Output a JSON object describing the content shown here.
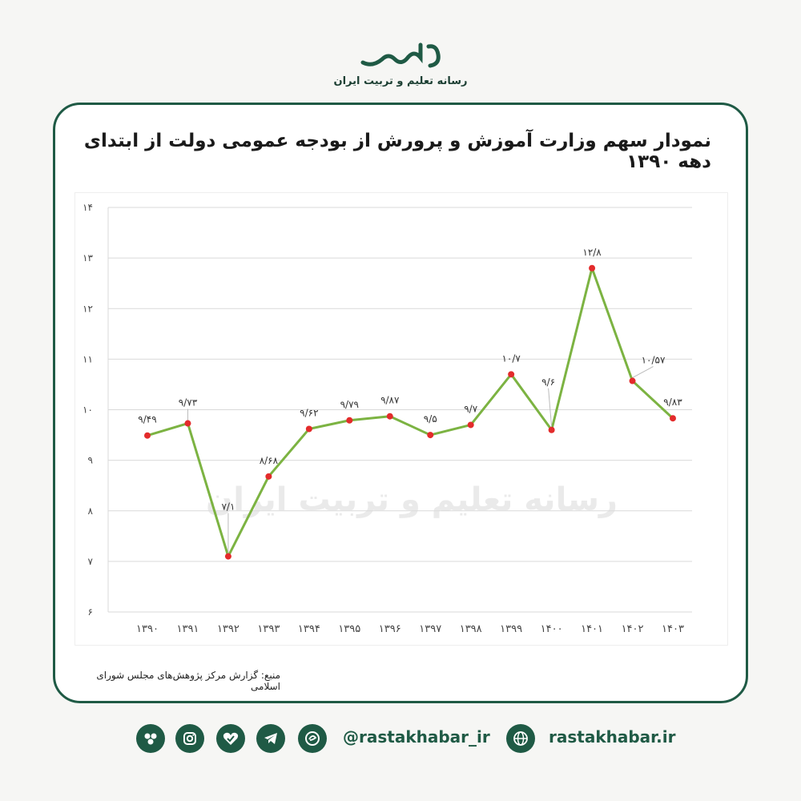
{
  "brand": {
    "logo_text": "رستا",
    "subtitle": "رسانه تعلیم و تربیت ایران"
  },
  "title": "نمودار سهم وزارت آموزش و پرورش از بودجه عمومی دولت از ابتدای دهه ۱۳۹۰",
  "source": "منبع: گزارش مرکز پژوهش‌های مجلس شورای اسلامی",
  "watermark": "رسانه تعلیم و تربیت ایران",
  "footer": {
    "handle": "@rastakhabar_ir",
    "website": "rastakhabar.ir",
    "icons": [
      "rubika-icon",
      "instagram-icon",
      "check-heart-icon",
      "telegram-icon",
      "eitaa-icon",
      "globe-icon"
    ]
  },
  "colors": {
    "line": "#7cb342",
    "marker": "#e32b2b",
    "accent": "#1f5a45"
  },
  "chart_data": {
    "type": "line",
    "categories": [
      "۱۳۹۰",
      "۱۳۹۱",
      "۱۳۹۲",
      "۱۳۹۳",
      "۱۳۹۴",
      "۱۳۹۵",
      "۱۳۹۶",
      "۱۳۹۷",
      "۱۳۹۸",
      "۱۳۹۹",
      "۱۴۰۰",
      "۱۴۰۱",
      "۱۴۰۲",
      "۱۴۰۳"
    ],
    "values": [
      9.49,
      9.73,
      7.1,
      8.68,
      9.62,
      9.79,
      9.87,
      9.5,
      9.7,
      10.7,
      9.6,
      12.8,
      10.57,
      9.83
    ],
    "data_labels": [
      "۹/۴۹",
      "۹/۷۳",
      "۷/۱",
      "۸/۶۸",
      "۹/۶۲",
      "۹/۷۹",
      "۹/۸۷",
      "۹/۵",
      "۹/۷",
      "۱۰/۷",
      "۹/۶",
      "۱۲/۸",
      "۱۰/۵۷",
      "۹/۸۳"
    ],
    "yticks": [
      6,
      7,
      8,
      9,
      10,
      11,
      12,
      13,
      14
    ],
    "ytick_labels": [
      "۶",
      "۷",
      "۸",
      "۹",
      "۱۰",
      "۱۱",
      "۱۲",
      "۱۳",
      "۱۴"
    ],
    "ylim": [
      6,
      14
    ],
    "grid": true,
    "legend": "none"
  }
}
